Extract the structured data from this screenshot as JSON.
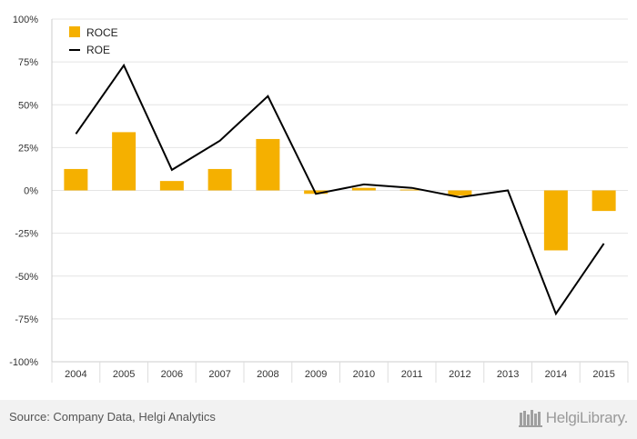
{
  "chart_data": {
    "type": "bar",
    "categories": [
      "2004",
      "2005",
      "2006",
      "2007",
      "2008",
      "2009",
      "2010",
      "2011",
      "2012",
      "2013",
      "2014",
      "2015"
    ],
    "series": [
      {
        "name": "ROCE",
        "type": "bar",
        "color": "#f5b000",
        "values": [
          12.5,
          34,
          5.5,
          12.5,
          30,
          -2,
          1.5,
          0.5,
          -3,
          0,
          -35,
          -12
        ]
      },
      {
        "name": "ROE",
        "type": "line",
        "color": "#000000",
        "values": [
          33,
          73,
          12,
          29,
          55,
          -2,
          3.5,
          1.5,
          -4,
          0,
          -72,
          -31
        ]
      }
    ],
    "ylim": [
      -100,
      100
    ],
    "yticks": [
      -100,
      -75,
      -50,
      -25,
      0,
      25,
      50,
      75,
      100
    ],
    "ytick_labels": [
      "-100%",
      "-75%",
      "-50%",
      "-25%",
      "0%",
      "25%",
      "50%",
      "75%",
      "100%"
    ],
    "legend": "top-left",
    "grid": true
  },
  "footer": {
    "source": "Source: Company Data, Helgi Analytics",
    "brand": "HelgiLibrary."
  }
}
